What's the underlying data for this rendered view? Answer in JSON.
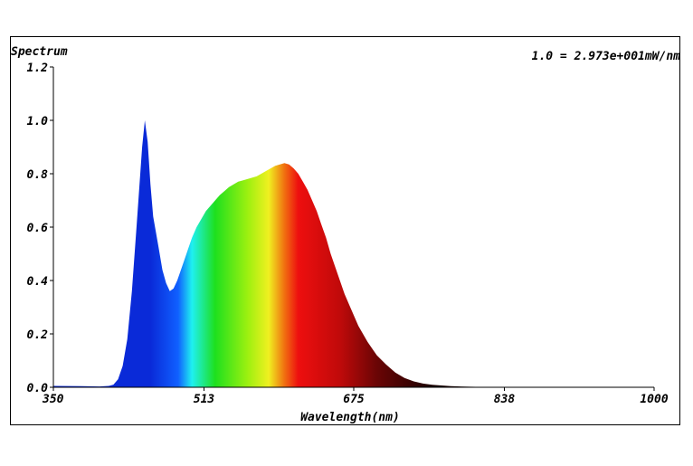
{
  "chart_data": {
    "type": "area",
    "title": "Spectrum",
    "scale_note": "1.0 = 2.973e+001mW/nm",
    "xlabel": "Wavelength(nm)",
    "ylabel": "",
    "xlim": [
      350,
      1000
    ],
    "ylim": [
      0,
      1.2
    ],
    "x_ticks": [
      "350",
      "513",
      "675",
      "838",
      "1000"
    ],
    "y_ticks": [
      "0.0",
      "0.2",
      "0.4",
      "0.6",
      "0.8",
      "1.0",
      "1.2"
    ],
    "fill": "spectral color gradient",
    "series": [
      {
        "x": [
          350,
          380,
          400,
          410,
          415,
          420,
          425,
          430,
          435,
          440,
          443,
          446,
          449,
          452,
          455,
          458,
          461,
          464,
          468,
          472,
          476,
          480,
          484,
          488,
          492,
          496,
          500,
          505,
          510,
          515,
          520,
          525,
          530,
          535,
          540,
          545,
          550,
          555,
          560,
          565,
          570,
          575,
          580,
          585,
          590,
          595,
          600,
          605,
          610,
          615,
          620,
          625,
          630,
          635,
          640,
          645,
          650,
          655,
          660,
          665,
          670,
          675,
          680,
          690,
          700,
          710,
          720,
          730,
          740,
          750,
          760,
          780,
          800,
          820,
          840,
          860,
          880,
          900,
          950,
          1000
        ],
        "y": [
          0.005,
          0.004,
          0.003,
          0.005,
          0.01,
          0.03,
          0.08,
          0.18,
          0.36,
          0.6,
          0.75,
          0.9,
          1.0,
          0.92,
          0.76,
          0.64,
          0.58,
          0.52,
          0.44,
          0.39,
          0.36,
          0.37,
          0.4,
          0.44,
          0.48,
          0.52,
          0.56,
          0.6,
          0.63,
          0.66,
          0.68,
          0.7,
          0.72,
          0.735,
          0.75,
          0.76,
          0.77,
          0.775,
          0.78,
          0.785,
          0.79,
          0.8,
          0.81,
          0.82,
          0.83,
          0.835,
          0.84,
          0.835,
          0.82,
          0.8,
          0.77,
          0.74,
          0.7,
          0.66,
          0.61,
          0.56,
          0.5,
          0.45,
          0.4,
          0.35,
          0.31,
          0.27,
          0.23,
          0.17,
          0.12,
          0.085,
          0.055,
          0.035,
          0.022,
          0.014,
          0.009,
          0.004,
          0.002,
          0.001,
          0.0005,
          0.0002,
          0.0001,
          0.0,
          0.0,
          0.0
        ]
      }
    ],
    "grid": false,
    "legend": "none"
  },
  "colors": {
    "axis": "#000000",
    "spectrum_blue": "#0a2ad8",
    "spectrum_cyan": "#1ff0f0",
    "spectrum_green": "#1ee01e",
    "spectrum_yellow": "#f0f020",
    "spectrum_red": "#ee0f0f",
    "spectrum_dark": "#1a0000"
  }
}
